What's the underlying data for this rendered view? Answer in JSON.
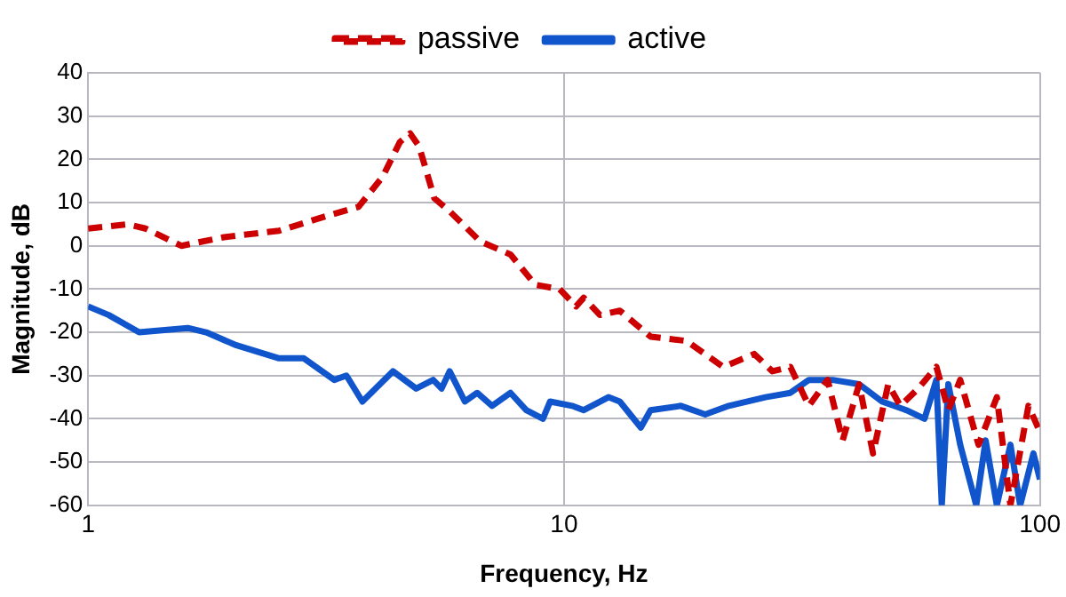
{
  "chart_data": {
    "type": "line",
    "xlabel": "Frequency, Hz",
    "ylabel": "Magnitude, dB",
    "log": "x",
    "xlim": [
      1,
      100
    ],
    "xticks": [
      1,
      10,
      100
    ],
    "ylim": [
      -60,
      40
    ],
    "yticks": [
      -60,
      -50,
      -40,
      -30,
      -20,
      -10,
      0,
      10,
      20,
      30,
      40
    ],
    "grid": true,
    "legend": "top",
    "marker": "none",
    "series": [
      {
        "name": "passive",
        "color": "#cc0000",
        "line_style": "dashed",
        "x": [
          1,
          1.21,
          1.32,
          1.57,
          1.93,
          2.52,
          3.19,
          3.7,
          4.16,
          4.52,
          4.75,
          4.96,
          5.34,
          5.75,
          6.67,
          7.72,
          8.7,
          9.79,
          10.6,
          11,
          11.9,
          13.1,
          15.2,
          18.1,
          21.6,
          25.1,
          27.4,
          29.9,
          32.7,
          35.8,
          38.5,
          41.7,
          44.6,
          48,
          50.9,
          55.5,
          60.6,
          64.2,
          68,
          74.3,
          81.2,
          86.7,
          94.6,
          100
        ],
        "values": [
          4,
          5,
          4,
          0,
          2,
          3.5,
          7,
          9,
          16,
          24,
          26,
          23,
          11,
          8,
          1,
          -2,
          -9,
          -10,
          -14,
          -12,
          -16,
          -15,
          -21,
          -22,
          -28,
          -25,
          -29,
          -28,
          -37,
          -31,
          -45,
          -32,
          -48,
          -32,
          -37,
          -33,
          -28,
          -38,
          -31,
          -46,
          -35,
          -60,
          -37,
          -43
        ]
      },
      {
        "name": "active",
        "color": "#1155cc",
        "line_style": "solid",
        "x": [
          1,
          1.105,
          1.28,
          1.62,
          1.77,
          2.05,
          2.52,
          2.84,
          3.29,
          3.49,
          3.77,
          4.37,
          4.89,
          5.31,
          5.53,
          5.75,
          6.19,
          6.57,
          7.06,
          7.72,
          8.33,
          9.03,
          9.35,
          10.4,
          11,
          12.4,
          13.1,
          14.5,
          15.2,
          17.6,
          19.8,
          22.2,
          26.5,
          29.9,
          32.7,
          36.7,
          41.7,
          46.6,
          52.4,
          57.2,
          60.6,
          62.2,
          64.2,
          68,
          73.5,
          76.9,
          81.2,
          86.7,
          90.9,
          96.9,
          100
        ],
        "values": [
          -14,
          -16,
          -20,
          -19,
          -20,
          -23,
          -26,
          -26,
          -31,
          -30,
          -36,
          -29,
          -33,
          -31,
          -33,
          -29,
          -36,
          -34,
          -37,
          -34,
          -38,
          -40,
          -36,
          -37,
          -38,
          -35,
          -36,
          -42,
          -38,
          -37,
          -39,
          -37,
          -35,
          -34,
          -31,
          -31,
          -32,
          -36,
          -38,
          -40,
          -31,
          -60,
          -32,
          -46,
          -60,
          -45,
          -60,
          -46,
          -60,
          -48,
          -54
        ]
      }
    ]
  }
}
